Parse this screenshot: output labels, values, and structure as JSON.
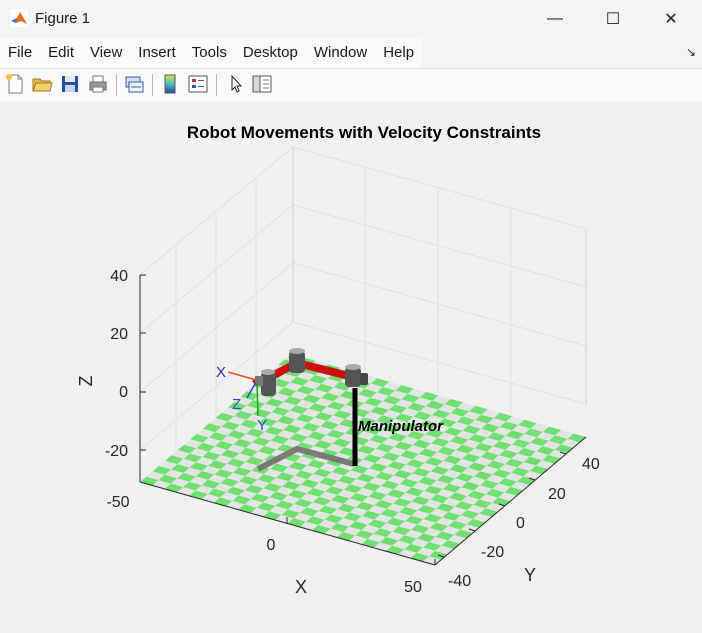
{
  "window": {
    "title": "Figure 1",
    "controls": {
      "minimize": "—",
      "maximize": "☐",
      "close": "✕"
    }
  },
  "menubar": {
    "items": [
      "File",
      "Edit",
      "View",
      "Insert",
      "Tools",
      "Desktop",
      "Window",
      "Help"
    ],
    "dock_icon": "dock-arrow-icon"
  },
  "toolbar": {
    "buttons": [
      {
        "name": "new-figure-icon"
      },
      {
        "name": "open-file-icon"
      },
      {
        "name": "save-icon"
      },
      {
        "name": "print-icon"
      },
      {
        "name": "link-plot-icon"
      },
      {
        "name": "insert-colorbar-icon"
      },
      {
        "name": "insert-legend-icon"
      },
      {
        "name": "edit-plot-pointer-icon"
      },
      {
        "name": "property-inspector-icon"
      }
    ]
  },
  "plot": {
    "title": "Robot Movements with Velocity Constraints",
    "annotation": "Manipulator",
    "axes": {
      "x_label": "X",
      "y_label": "Y",
      "z_label": "Z",
      "x_ticks": [
        "-50",
        "0",
        "50"
      ],
      "y_ticks": [
        "-40",
        "-20",
        "0",
        "20",
        "40"
      ],
      "z_ticks": [
        "40",
        "20",
        "0",
        "-20"
      ]
    },
    "frame_labels": {
      "x": "X",
      "y": "Y",
      "z": "Z"
    },
    "colors": {
      "floor_green": "#6fe06f",
      "floor_light": "#e4e4e4",
      "link_red": "#cc1010",
      "joint_gray": "#555555",
      "path_gray": "#7a7a7a",
      "base_black": "#000000"
    }
  }
}
